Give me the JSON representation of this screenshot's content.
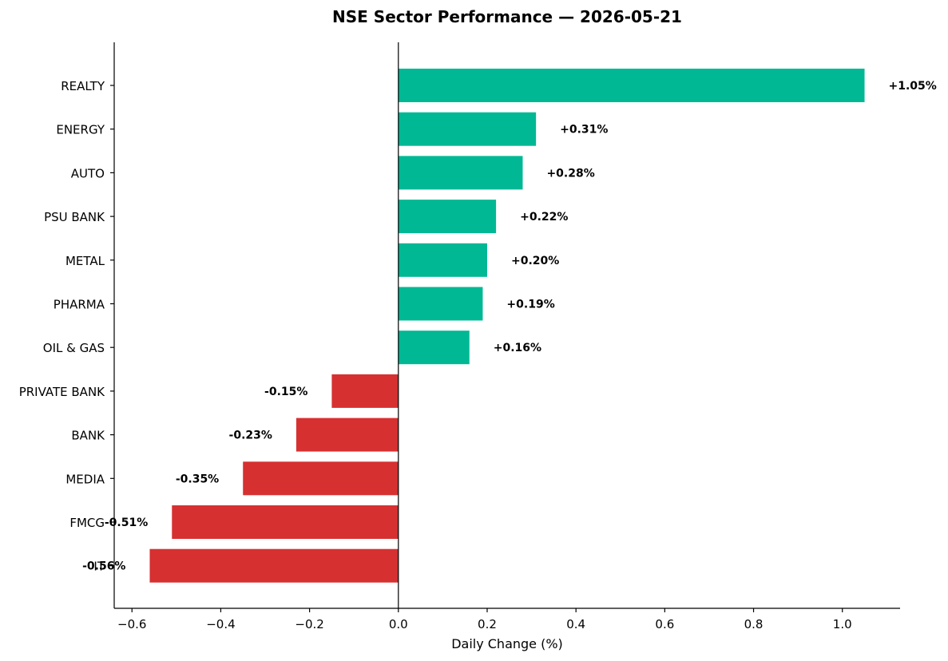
{
  "chart_data": {
    "type": "bar",
    "orientation": "horizontal",
    "title": "NSE Sector Performance — 2026-05-21",
    "xlabel": "Daily Change (%)",
    "ylabel": "",
    "xlim": [
      -0.64,
      1.13
    ],
    "xticks": [
      -0.6,
      -0.4,
      -0.2,
      0.0,
      0.2,
      0.4,
      0.6,
      0.8,
      1.0
    ],
    "xtick_labels": [
      "−0.6",
      "−0.4",
      "−0.2",
      "0.0",
      "0.2",
      "0.4",
      "0.6",
      "0.8",
      "1.0"
    ],
    "categories": [
      "REALTY",
      "ENERGY",
      "AUTO",
      "PSU BANK",
      "METAL",
      "PHARMA",
      "OIL & GAS",
      "PRIVATE BANK",
      "BANK",
      "MEDIA",
      "FMCG",
      "IT"
    ],
    "values": [
      1.05,
      0.31,
      0.28,
      0.22,
      0.2,
      0.19,
      0.16,
      -0.15,
      -0.23,
      -0.35,
      -0.51,
      -0.56
    ],
    "data_labels": [
      "+1.05%",
      "+0.31%",
      "+0.28%",
      "+0.22%",
      "+0.20%",
      "+0.19%",
      "+0.16%",
      "-0.15%",
      "-0.23%",
      "-0.35%",
      "-0.51%",
      "-0.56%"
    ],
    "colors": {
      "positive": "#00b894",
      "negative": "#d63031"
    },
    "grid": false,
    "legend": "none"
  }
}
